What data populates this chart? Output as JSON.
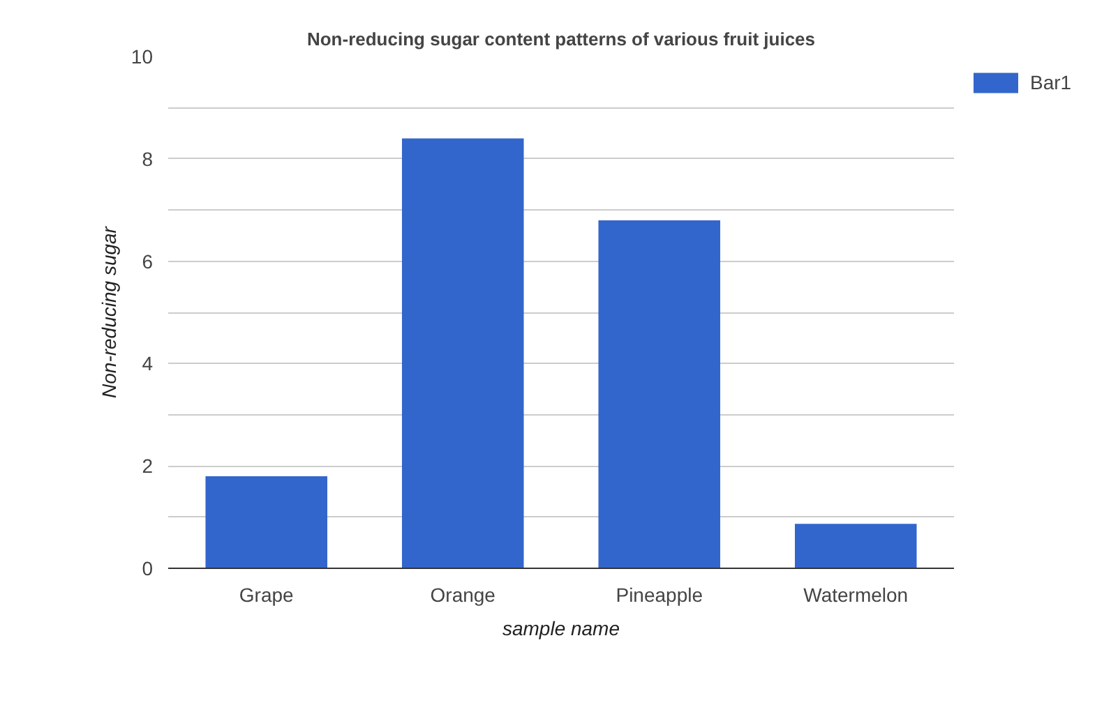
{
  "chart_data": {
    "type": "bar",
    "title": "Non-reducing sugar content patterns of various fruit juices",
    "xlabel": "sample name",
    "ylabel": "Non-reducing sugar",
    "categories": [
      "Grape",
      "Orange",
      "Pineapple",
      "Watermelon"
    ],
    "series": [
      {
        "name": "Bar1",
        "color": "#3366cc",
        "values": [
          1.8,
          8.4,
          6.8,
          0.87
        ]
      }
    ],
    "ylim": [
      0,
      10
    ],
    "yticks": [
      0,
      {
        "value": 1,
        "label": null
      },
      2,
      {
        "value": 3,
        "label": null
      },
      4,
      {
        "value": 5,
        "label": null
      },
      6,
      {
        "value": 7,
        "label": null
      },
      8,
      {
        "value": 9,
        "label": null
      },
      10
    ],
    "grid": "y",
    "legend": "top right"
  }
}
